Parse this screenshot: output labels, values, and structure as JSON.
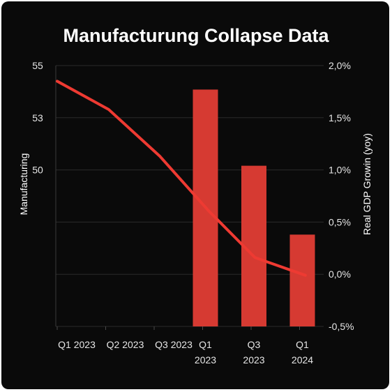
{
  "chart_data": {
    "type": "bar",
    "title": "Manufacturung Collapse Data",
    "ylabel_left": "Manufacturing",
    "ylabel_right": "Real GDP Growin (yoy)",
    "left_ticks": [
      "55",
      "53",
      "50"
    ],
    "right_ticks": [
      "2,0%",
      "1,5%",
      "1,0%",
      "0,5%",
      "0,0%",
      "-0,5%"
    ],
    "right_ylim": [
      -0.5,
      2.0
    ],
    "categories": [
      {
        "lines": [
          "Q1 2023"
        ]
      },
      {
        "lines": [
          "Q2 2023"
        ]
      },
      {
        "lines": [
          "Q3 2023"
        ]
      },
      {
        "lines": [
          "Q1",
          "2023"
        ]
      },
      {
        "lines": [
          "Q3",
          "2023"
        ]
      },
      {
        "lines": [
          "Q1",
          "2024"
        ]
      }
    ],
    "series": [
      {
        "type": "bar",
        "axis": "right",
        "color": "#d63a32",
        "points": [
          {
            "category": 3,
            "value": 1.77
          },
          {
            "category": 4,
            "value": 1.04
          },
          {
            "category": 5,
            "value": 0.38
          }
        ]
      },
      {
        "type": "line",
        "axis": "right",
        "color": "#ee3a32",
        "x": [
          0,
          1.06,
          2.12,
          3.12,
          4.08,
          5.12
        ],
        "values": [
          1.85,
          1.58,
          1.13,
          0.61,
          0.16,
          -0.01
        ]
      }
    ],
    "grid": true,
    "legend": "none"
  }
}
